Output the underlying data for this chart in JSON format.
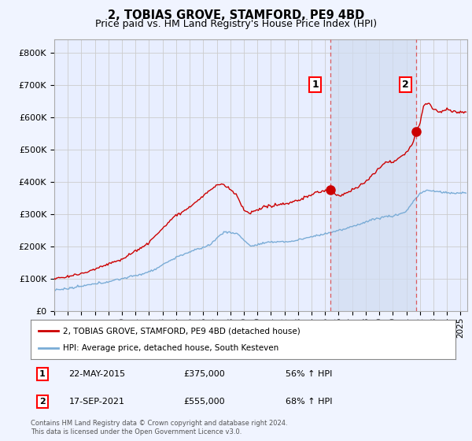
{
  "title": "2, TOBIAS GROVE, STAMFORD, PE9 4BD",
  "subtitle": "Price paid vs. HM Land Registry's House Price Index (HPI)",
  "title_fontsize": 10.5,
  "subtitle_fontsize": 9,
  "background_color": "#f0f4ff",
  "plot_bg_color": "#e8eeff",
  "shade_color": "#d0dcf0",
  "ylabel_ticks": [
    "£0",
    "£100K",
    "£200K",
    "£300K",
    "£400K",
    "£500K",
    "£600K",
    "£700K",
    "£800K"
  ],
  "ytick_vals": [
    0,
    100000,
    200000,
    300000,
    400000,
    500000,
    600000,
    700000,
    800000
  ],
  "ylim": [
    0,
    840000
  ],
  "xlim_start": 1995.0,
  "xlim_end": 2025.5,
  "xtick_years": [
    1995,
    1996,
    1997,
    1998,
    1999,
    2000,
    2001,
    2002,
    2003,
    2004,
    2005,
    2006,
    2007,
    2008,
    2009,
    2010,
    2011,
    2012,
    2013,
    2014,
    2015,
    2016,
    2017,
    2018,
    2019,
    2020,
    2021,
    2022,
    2023,
    2024,
    2025
  ],
  "sale1_x": 2015.38,
  "sale1_y": 375000,
  "sale1_label": "1",
  "sale2_x": 2021.72,
  "sale2_y": 555000,
  "sale2_label": "2",
  "red_line_color": "#cc0000",
  "blue_line_color": "#7aacd6",
  "marker_color": "#cc0000",
  "dashed_line_color": "#dd4444",
  "legend_label_red": "2, TOBIAS GROVE, STAMFORD, PE9 4BD (detached house)",
  "legend_label_blue": "HPI: Average price, detached house, South Kesteven",
  "annotation1_date": "22-MAY-2015",
  "annotation1_price": "£375,000",
  "annotation1_hpi": "56% ↑ HPI",
  "annotation2_date": "17-SEP-2021",
  "annotation2_price": "£555,000",
  "annotation2_hpi": "68% ↑ HPI",
  "footer": "Contains HM Land Registry data © Crown copyright and database right 2024.\nThis data is licensed under the Open Government Licence v3.0."
}
